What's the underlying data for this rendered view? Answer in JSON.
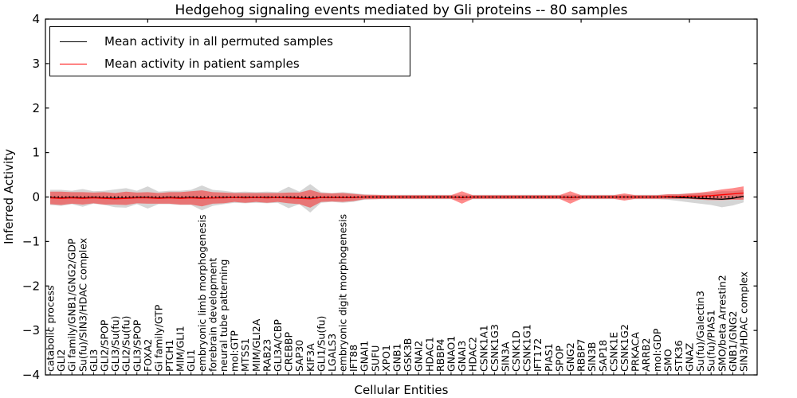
{
  "chart_data": {
    "type": "line",
    "title": "Hedgehog signaling events mediated by Gli proteins -- 80 samples",
    "xlabel": "Cellular Entities",
    "ylabel": "Inferred Activity",
    "ylim": [
      -4,
      4
    ],
    "grid": false,
    "legend_position": "upper left",
    "yticks": [
      {
        "v": 4,
        "label": "4"
      },
      {
        "v": 3,
        "label": "3"
      },
      {
        "v": 2,
        "label": "2"
      },
      {
        "v": 1,
        "label": "1"
      },
      {
        "v": 0,
        "label": "0"
      },
      {
        "v": -1,
        "label": "−1"
      },
      {
        "v": -2,
        "label": "−2"
      },
      {
        "v": -3,
        "label": "−3"
      },
      {
        "v": -4,
        "label": "−4"
      }
    ],
    "categories": [
      "catabolic process",
      "GLI2",
      "Gi family/GNB1/GNG2/GDP",
      "Su(fu)/SIN3/HDAC complex",
      "GLI3",
      "GLI2/SPOP",
      "GLI3/Su(fu)",
      "GLI2/Su(fu)",
      "GLI3/SPOP",
      "FOXA2",
      "Gi family/GTP",
      "PTCH1",
      "MIM/GLI1",
      "GLI1",
      "embryonic limb morphogenesis",
      "forebrain development",
      "neural tube patterning",
      "mol:GTP",
      "MTSS1",
      "MIM/GLI2A",
      "RAB23",
      "GLI3A/CBP",
      "CREBBP",
      "SAP30",
      "KIF3A",
      "GLI1/Su(fu)",
      "LGALS3",
      "embryonic digit morphogenesis",
      "IFT88",
      "GNAI1",
      "SUFU",
      "XPO1",
      "GNB1",
      "GSK3B",
      "GNAI2",
      "HDAC1",
      "RBBP4",
      "GNAO1",
      "GNAI3",
      "HDAC2",
      "CSNK1A1",
      "CSNK1G3",
      "SIN3A",
      "CSNK1D",
      "CSNK1G1",
      "IFT172",
      "PIAS1",
      "SPOP",
      "GNG2",
      "RBBP7",
      "SIN3B",
      "SAP18",
      "CSNK1E",
      "CSNK1G2",
      "PRKACA",
      "ARRB2",
      "mol:GDP",
      "SMO",
      "STK36",
      "GNAZ",
      "Su(fu)/Galectin3",
      "Su(fu)/PIAS1",
      "SMO/beta Arrestin2",
      "GNB1/GNG2",
      "SIN3/HDAC complex"
    ],
    "series": [
      {
        "name": "Mean activity in all permuted samples",
        "color": "#000000",
        "values": [
          -0.01,
          -0.02,
          -0.01,
          -0.02,
          -0.01,
          -0.02,
          -0.03,
          -0.02,
          -0.01,
          -0.01,
          -0.02,
          -0.01,
          -0.02,
          -0.01,
          -0.02,
          -0.02,
          -0.01,
          -0.01,
          -0.01,
          -0.01,
          -0.01,
          -0.01,
          -0.01,
          -0.02,
          -0.03,
          -0.01,
          -0.01,
          -0.01,
          -0.01,
          0,
          0,
          0,
          0,
          0,
          0,
          0,
          0,
          0,
          -0.01,
          0,
          0,
          0,
          0,
          0,
          0,
          0,
          0,
          0,
          -0.01,
          0,
          0,
          0,
          0,
          0,
          0,
          0,
          0,
          0,
          -0.01,
          -0.02,
          -0.03,
          -0.04,
          -0.05,
          -0.03,
          0.02
        ]
      },
      {
        "name": "Mean activity in patient samples",
        "color": "#ff0000",
        "values": [
          -0.02,
          -0.03,
          -0.02,
          -0.03,
          -0.02,
          -0.03,
          -0.04,
          -0.03,
          -0.02,
          -0.02,
          -0.03,
          -0.02,
          -0.03,
          -0.02,
          -0.03,
          -0.02,
          -0.02,
          -0.01,
          -0.02,
          -0.01,
          -0.02,
          -0.01,
          -0.02,
          -0.03,
          -0.04,
          -0.01,
          -0.01,
          -0.01,
          -0.01,
          0,
          0,
          0,
          0,
          0,
          0,
          0,
          0,
          0,
          -0.01,
          0,
          0,
          0,
          0,
          0,
          0,
          0,
          0,
          0,
          -0.01,
          0,
          0,
          0,
          0,
          0,
          0,
          0,
          0,
          0.01,
          0.01,
          0.02,
          0.02,
          0.03,
          0.05,
          0.07,
          0.09
        ]
      }
    ],
    "bands": [
      {
        "name": "permuted-std-band",
        "center_series": 0,
        "color": "#888888",
        "opacity": 0.35,
        "half_widths": [
          0.17,
          0.18,
          0.15,
          0.2,
          0.14,
          0.16,
          0.2,
          0.22,
          0.15,
          0.25,
          0.14,
          0.15,
          0.16,
          0.17,
          0.28,
          0.18,
          0.15,
          0.12,
          0.13,
          0.12,
          0.13,
          0.12,
          0.24,
          0.14,
          0.32,
          0.12,
          0.1,
          0.12,
          0.1,
          0.06,
          0.05,
          0.05,
          0.05,
          0.05,
          0.05,
          0.05,
          0.05,
          0.05,
          0.06,
          0.05,
          0.05,
          0.05,
          0.05,
          0.05,
          0.05,
          0.05,
          0.05,
          0.05,
          0.06,
          0.05,
          0.05,
          0.05,
          0.05,
          0.05,
          0.05,
          0.05,
          0.05,
          0.06,
          0.08,
          0.1,
          0.12,
          0.14,
          0.18,
          0.16,
          0.14
        ]
      },
      {
        "name": "patient-std-band",
        "center_series": 1,
        "color": "#ff0000",
        "opacity": 0.45,
        "half_widths": [
          0.14,
          0.15,
          0.13,
          0.14,
          0.12,
          0.14,
          0.13,
          0.15,
          0.12,
          0.13,
          0.12,
          0.13,
          0.14,
          0.15,
          0.18,
          0.13,
          0.12,
          0.1,
          0.11,
          0.1,
          0.11,
          0.1,
          0.12,
          0.13,
          0.2,
          0.1,
          0.09,
          0.1,
          0.08,
          0.05,
          0.05,
          0.04,
          0.04,
          0.04,
          0.04,
          0.04,
          0.04,
          0.04,
          0.14,
          0.04,
          0.04,
          0.04,
          0.04,
          0.04,
          0.04,
          0.04,
          0.04,
          0.04,
          0.14,
          0.04,
          0.04,
          0.04,
          0.04,
          0.08,
          0.04,
          0.04,
          0.04,
          0.05,
          0.05,
          0.06,
          0.08,
          0.1,
          0.12,
          0.13,
          0.15
        ]
      }
    ],
    "zero_line": {
      "style": "dotted",
      "color": "#000000"
    }
  }
}
